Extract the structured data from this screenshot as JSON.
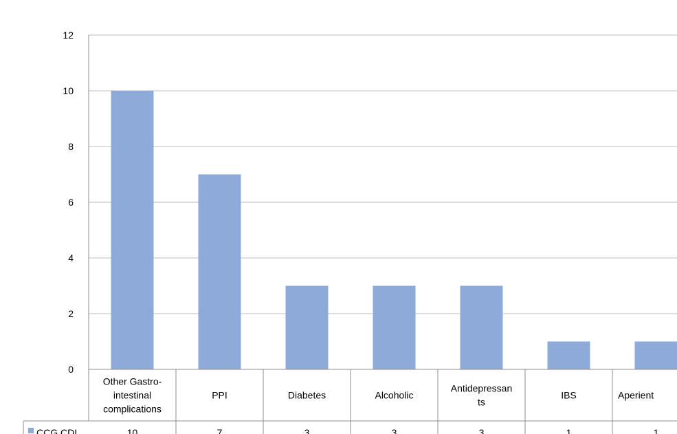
{
  "chart_data": {
    "type": "bar",
    "categories": [
      [
        "Other Gastro-",
        "intestinal",
        "complications"
      ],
      [
        "PPI"
      ],
      [
        "Diabetes"
      ],
      [
        "Alcoholic"
      ],
      [
        "Antidepressan",
        "ts"
      ],
      [
        "IBS"
      ],
      [
        "Aperient"
      ]
    ],
    "series": [
      {
        "name": "CCG CDI",
        "values": [
          10,
          7,
          3,
          3,
          3,
          1,
          1
        ],
        "color": "#8eaad8"
      }
    ],
    "ylim": [
      0,
      12
    ],
    "yticks": [
      0,
      2,
      4,
      6,
      8,
      10,
      12
    ],
    "grid": true,
    "legend": "data-table-left",
    "data_table": true,
    "table_values": [
      "10",
      "7",
      "3",
      "3",
      "3",
      "1",
      "1"
    ]
  }
}
